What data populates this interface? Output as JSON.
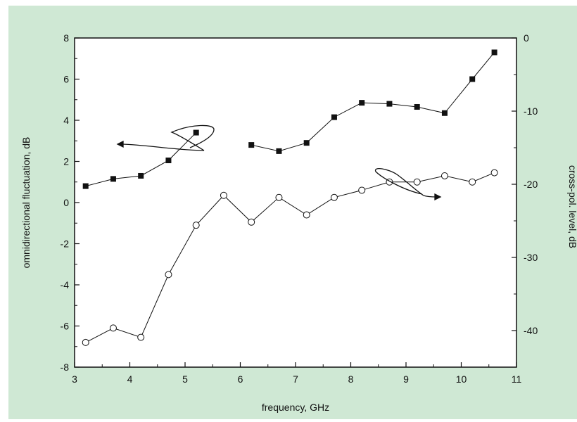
{
  "chart_data": {
    "type": "line",
    "title": "",
    "xlabel": "frequency, GHz",
    "ylabel_left": "omnidirectional fluctuation, dB",
    "ylabel_right": "cross-pol. level, dB",
    "xlim": [
      3,
      11
    ],
    "ylim_left": [
      -8,
      8
    ],
    "ylim_right": [
      -45,
      0
    ],
    "xticks": [
      3,
      4,
      5,
      6,
      7,
      8,
      9,
      10,
      11
    ],
    "yticks_left": [
      -8,
      -6,
      -4,
      -2,
      0,
      2,
      4,
      6,
      8
    ],
    "yticks_right": [
      -40,
      -30,
      -20,
      -10,
      0
    ],
    "grid": false,
    "legend": "none",
    "colors": {
      "panel": "#cfe8d4",
      "plot": "#ffffff",
      "ink": "#111111"
    },
    "series": [
      {
        "axis": "left",
        "marker": "filled-square",
        "segments": [
          {
            "x": [
              3.2,
              3.7,
              4.2,
              4.7,
              5.2
            ],
            "y": [
              0.8,
              1.15,
              1.3,
              2.05,
              3.4
            ]
          },
          {
            "x": [
              6.2,
              6.7,
              7.2,
              7.7,
              8.2,
              8.7,
              9.2,
              9.7,
              10.2,
              10.6
            ],
            "y": [
              2.8,
              2.5,
              2.9,
              4.15,
              4.85,
              4.8,
              4.65,
              4.35,
              6.0,
              7.3
            ]
          }
        ]
      },
      {
        "axis": "left",
        "marker": "open-circle",
        "segments": [
          {
            "x": [
              3.2,
              3.7,
              4.2,
              4.7,
              5.2,
              5.7,
              6.2,
              6.7,
              7.2,
              7.7,
              8.2,
              8.7,
              9.2,
              9.7,
              10.2,
              10.6
            ],
            "y": [
              -6.8,
              -6.1,
              -6.55,
              -3.5,
              -1.1,
              0.35,
              -0.95,
              0.25,
              -0.6,
              0.25,
              0.6,
              1.0,
              1.0,
              1.3,
              1.0,
              1.45
            ]
          }
        ]
      }
    ]
  }
}
